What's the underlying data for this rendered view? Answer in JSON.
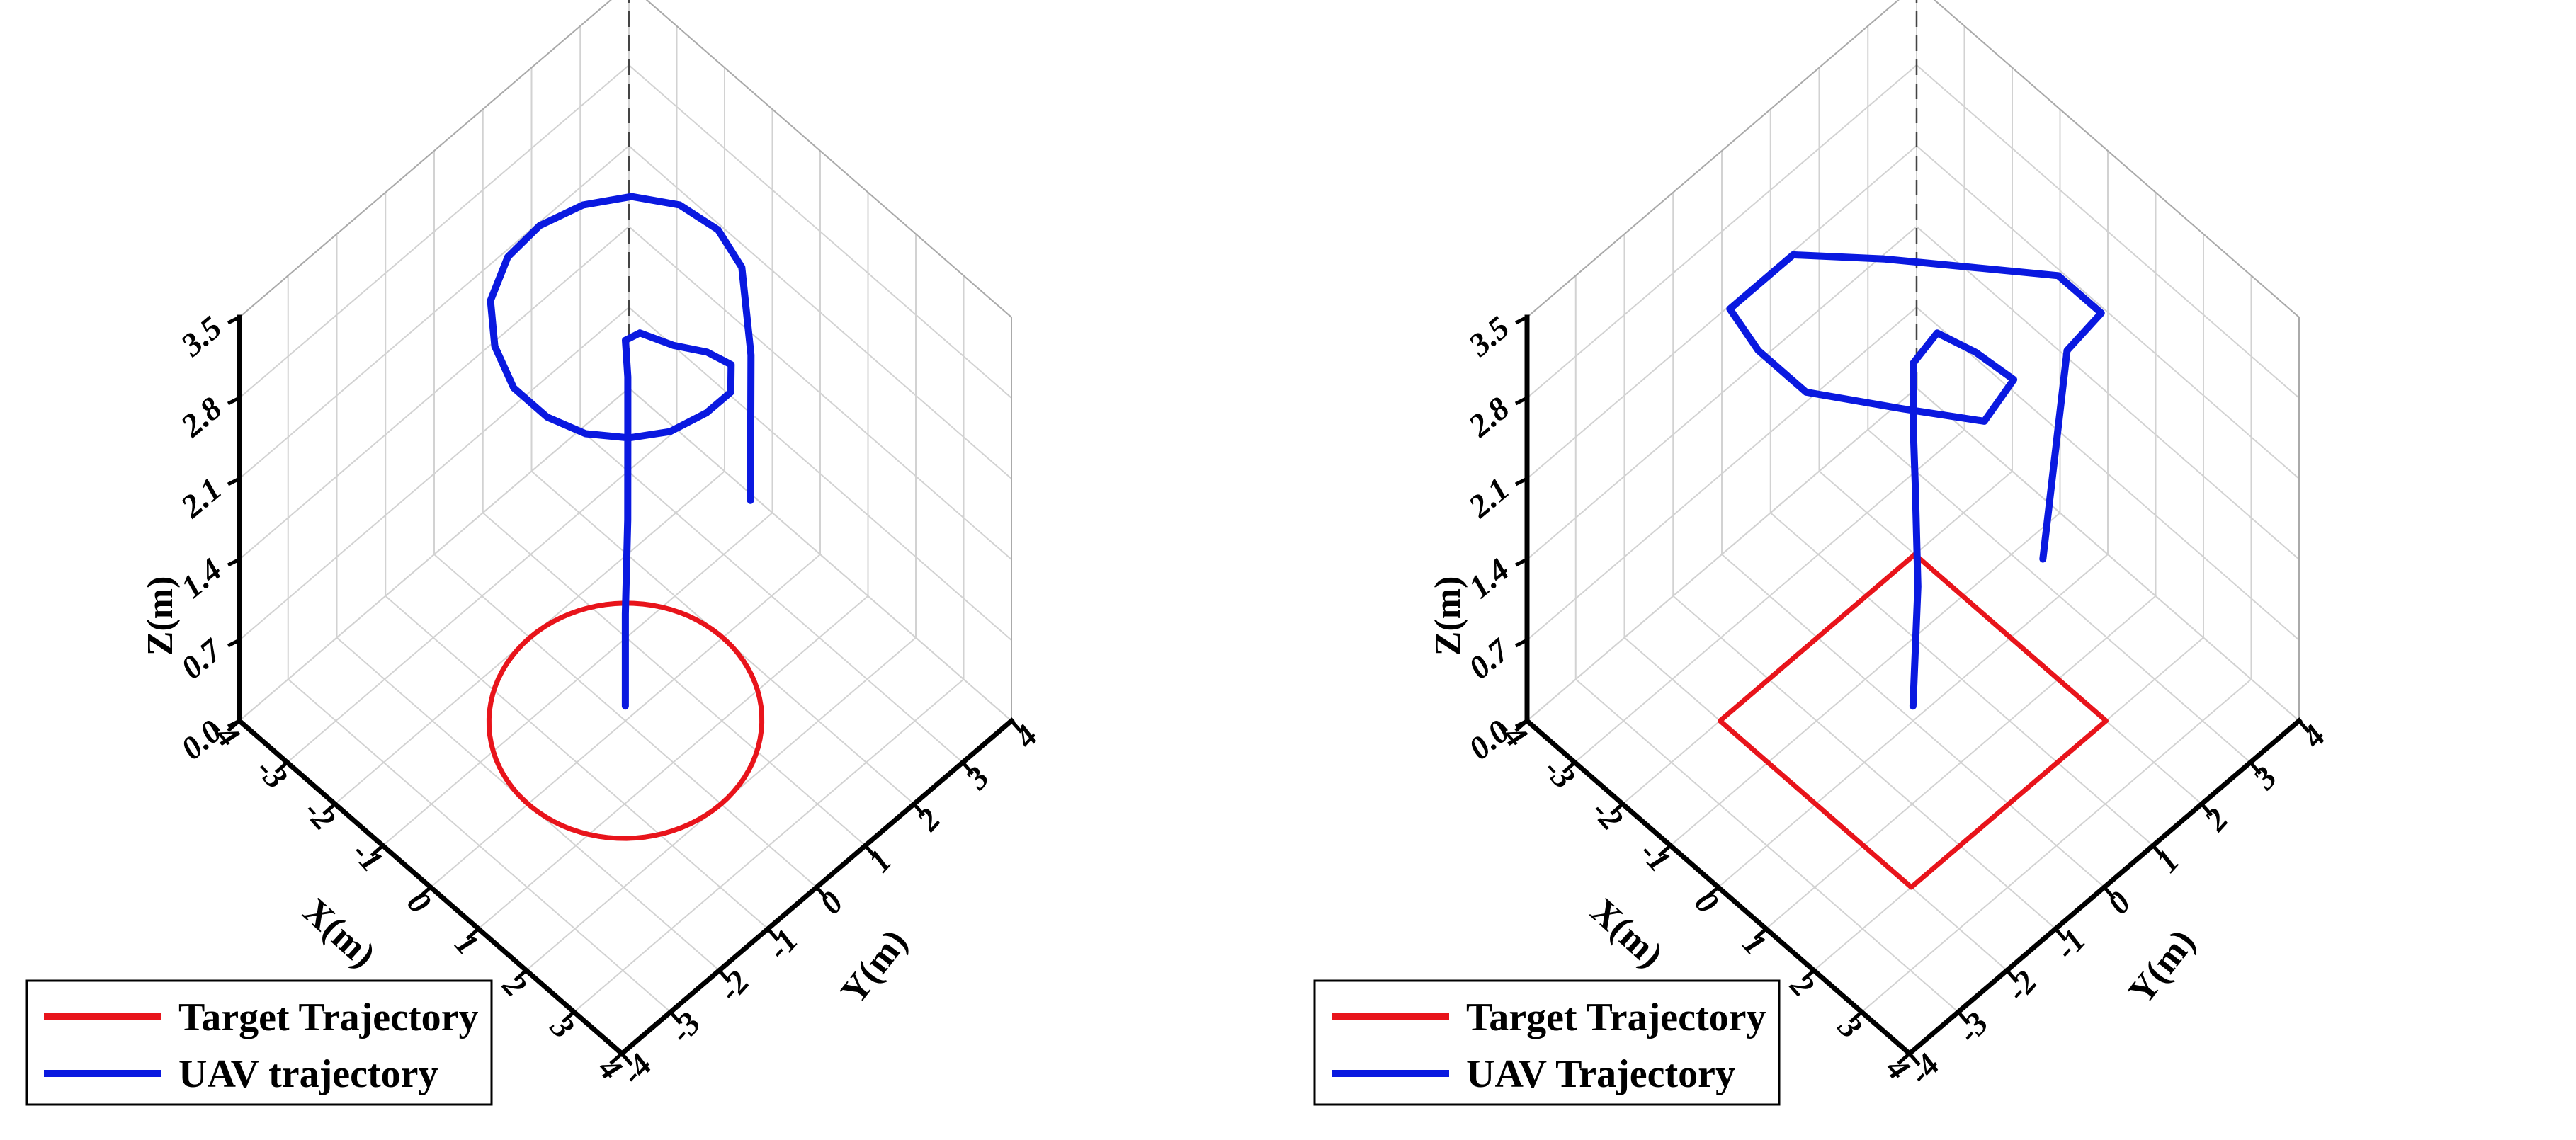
{
  "figure": {
    "panels": 2
  },
  "chart_data": [
    {
      "type": "line",
      "view": "3d",
      "shape": "circle",
      "grid": true,
      "legend_position": "bottom-left",
      "xlabel": "X(m)",
      "ylabel": "Y(m)",
      "zlabel": "Z(m)",
      "x_ticks": [
        "-4",
        "-3",
        "-2",
        "-1",
        "0",
        "1",
        "2",
        "3",
        "4"
      ],
      "y_ticks": [
        "-4",
        "-3",
        "-2",
        "-1",
        "0",
        "1",
        "2",
        "3",
        "4"
      ],
      "z_ticks": [
        "0.0",
        "0.7",
        "1.4",
        "2.1",
        "2.8",
        "3.5"
      ],
      "xlim": [
        -4,
        4
      ],
      "ylim": [
        -4,
        4
      ],
      "zlim": [
        0,
        3.5
      ],
      "series": [
        {
          "name": "Target Trajectory",
          "color": "#e8141b",
          "x": [
            2.0,
            1.73,
            1.0,
            0.0,
            -1.0,
            -1.73,
            -2.0,
            -1.73,
            -1.0,
            0.0,
            1.0,
            1.73,
            2.0
          ],
          "y": [
            0.0,
            1.0,
            1.73,
            2.0,
            1.73,
            1.0,
            0.0,
            -1.0,
            -1.73,
            -2.0,
            -1.73,
            -1.0,
            0.0
          ],
          "z": [
            0,
            0,
            0,
            0,
            0,
            0,
            0,
            0,
            0,
            0,
            0,
            0,
            0
          ]
        },
        {
          "name": "UAV trajectory",
          "color": "#0a19e0",
          "x": [
            0.1,
            0.1,
            0.1,
            0.05,
            0.05,
            0.0,
            0.2,
            0.7,
            1.2,
            1.6,
            2.0,
            2.0,
            1.85,
            1.5,
            1.0,
            0.4,
            -0.3,
            -1.0,
            -1.6,
            -1.95,
            -2.0,
            -1.8,
            -1.4,
            -0.8,
            -0.1,
            0.6,
            1.2,
            1.7
          ],
          "y": [
            -0.1,
            -0.1,
            -0.05,
            0.0,
            0.0,
            0.0,
            0.1,
            0.3,
            0.5,
            0.6,
            0.2,
            -0.3,
            -0.9,
            -1.4,
            -1.8,
            -2.0,
            -2.0,
            -1.7,
            -1.2,
            -0.5,
            0.2,
            0.9,
            1.5,
            1.9,
            2.0,
            1.8,
            1.4,
            0.9
          ],
          "z": [
            0.2,
            1.0,
            1.8,
            2.5,
            3.0,
            3.3,
            3.4,
            3.4,
            3.45,
            3.45,
            3.5,
            3.5,
            3.5,
            3.5,
            3.5,
            3.5,
            3.5,
            3.5,
            3.5,
            3.5,
            3.5,
            3.5,
            3.5,
            3.5,
            3.5,
            3.5,
            3.1,
            2.2
          ]
        }
      ]
    },
    {
      "type": "line",
      "view": "3d",
      "shape": "square",
      "grid": true,
      "legend_position": "bottom-left",
      "xlabel": "X(m)",
      "ylabel": "Y(m)",
      "zlabel": "Z(m)",
      "x_ticks": [
        "-4",
        "-3",
        "-2",
        "-1",
        "0",
        "1",
        "2",
        "3",
        "4"
      ],
      "y_ticks": [
        "-4",
        "-3",
        "-2",
        "-1",
        "0",
        "1",
        "2",
        "3",
        "4"
      ],
      "z_ticks": [
        "0.0",
        "0.7",
        "1.4",
        "2.1",
        "2.8",
        "3.5"
      ],
      "xlim": [
        -4,
        4
      ],
      "ylim": [
        -4,
        4
      ],
      "zlim": [
        0,
        3.5
      ],
      "series": [
        {
          "name": "Target Trajectory",
          "color": "#e8141b",
          "x": [
            -2,
            2,
            2,
            -2,
            -2
          ],
          "y": [
            -2,
            -2,
            2,
            2,
            -2
          ],
          "z": [
            0,
            0,
            0,
            0,
            0
          ]
        },
        {
          "name": "UAV Trajectory",
          "color": "#0a19e0",
          "x": [
            0.1,
            0.1,
            0.05,
            0.0,
            0.0,
            0.3,
            1.0,
            1.8,
            2.0,
            1.0,
            -0.2,
            -1.2,
            -2.0,
            -2.0,
            -1.0,
            0.0,
            1.0,
            1.9,
            2.0,
            1.9
          ],
          "y": [
            -0.1,
            0.0,
            0.0,
            0.0,
            0.0,
            0.2,
            0.3,
            0.3,
            -0.5,
            -1.2,
            -2.0,
            -2.0,
            -1.8,
            -0.5,
            0.4,
            1.2,
            2.0,
            2.0,
            1.2,
            0.8
          ],
          "z": [
            0.2,
            1.2,
            2.0,
            2.6,
            3.1,
            3.4,
            3.45,
            3.5,
            3.5,
            3.5,
            3.5,
            3.5,
            3.5,
            3.5,
            3.5,
            3.5,
            3.5,
            3.5,
            3.5,
            1.8
          ]
        }
      ]
    }
  ]
}
